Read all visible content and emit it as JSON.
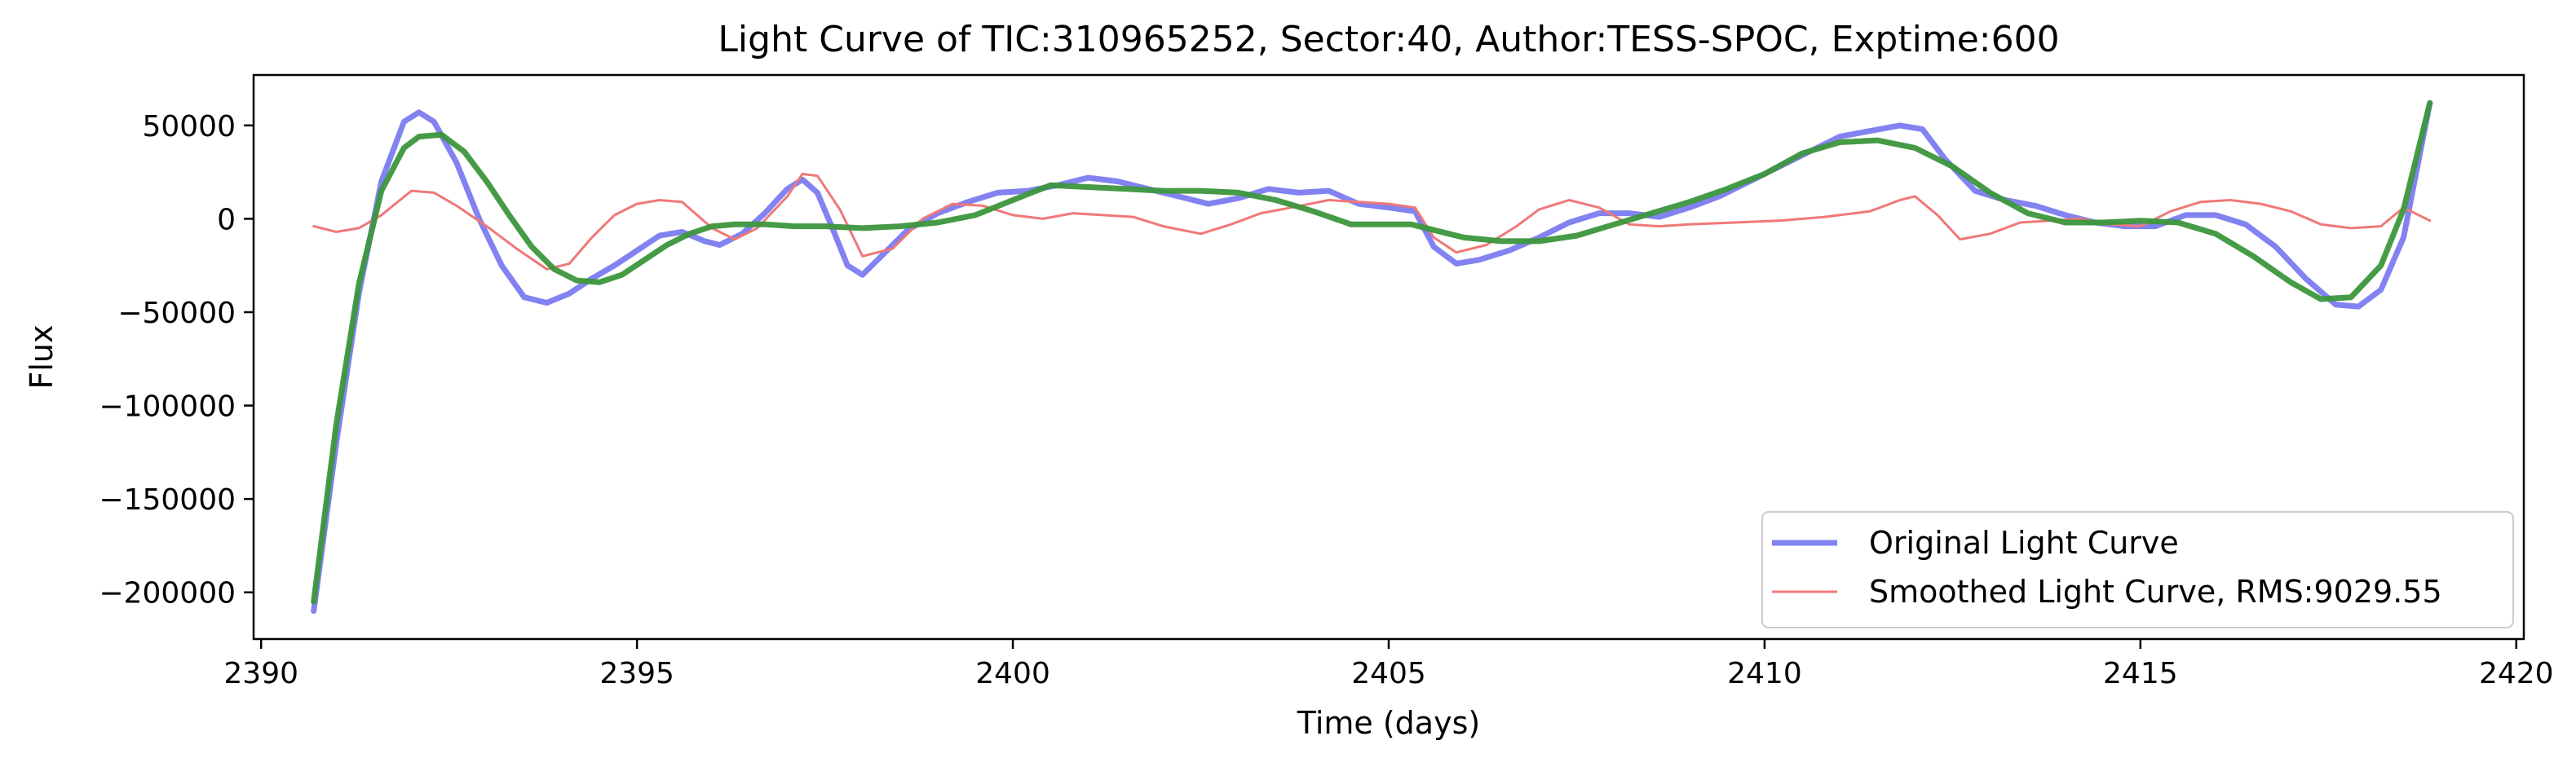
{
  "chart_data": {
    "type": "line",
    "title": "Light Curve of TIC:310965252, Sector:40, Author:TESS-SPOC, Exptime:600",
    "xlabel": "Time (days)",
    "ylabel": "Flux",
    "xlim": [
      2389.9,
      2420.1
    ],
    "ylim": [
      -225000,
      77000
    ],
    "xticks": [
      2390,
      2395,
      2400,
      2405,
      2410,
      2415,
      2420
    ],
    "yticks": [
      50000,
      0,
      -50000,
      -100000,
      -150000,
      -200000
    ],
    "ytick_labels": [
      "50000",
      "0",
      "−50000",
      "−100000",
      "−150000",
      "−200000"
    ],
    "grid": false,
    "legend": "lower-right",
    "series": [
      {
        "name": "Original Light Curve",
        "legend": true,
        "color": "#7b7bf0",
        "x": [
          2390.7,
          2391.0,
          2391.3,
          2391.6,
          2391.9,
          2392.1,
          2392.3,
          2392.6,
          2392.9,
          2393.2,
          2393.5,
          2393.8,
          2394.1,
          2394.4,
          2394.7,
          2395.0,
          2395.3,
          2395.6,
          2395.9,
          2396.1,
          2396.4,
          2396.7,
          2397.0,
          2397.2,
          2397.4,
          2397.6,
          2397.8,
          2398.0,
          2398.3,
          2398.6,
          2399.0,
          2399.4,
          2399.8,
          2400.2,
          2400.6,
          2401.0,
          2401.4,
          2401.8,
          2402.2,
          2402.6,
          2403.0,
          2403.4,
          2403.8,
          2404.2,
          2404.6,
          2405.0,
          2405.35,
          2405.6,
          2405.9,
          2406.2,
          2406.6,
          2407.0,
          2407.4,
          2407.8,
          2408.2,
          2408.6,
          2409.0,
          2409.4,
          2409.8,
          2410.2,
          2410.6,
          2411.0,
          2411.4,
          2411.8,
          2412.1,
          2412.4,
          2412.8,
          2413.2,
          2413.6,
          2414.0,
          2414.4,
          2414.8,
          2415.2,
          2415.6,
          2416.0,
          2416.4,
          2416.8,
          2417.2,
          2417.6,
          2417.9,
          2418.2,
          2418.5,
          2418.85
        ],
        "y": [
          -210000,
          -120000,
          -40000,
          20000,
          52000,
          57000,
          52000,
          30000,
          0,
          -25000,
          -42000,
          -45000,
          -40000,
          -32000,
          -25000,
          -17000,
          -9000,
          -7000,
          -12000,
          -14000,
          -8000,
          3000,
          16000,
          21000,
          14000,
          -5000,
          -25000,
          -30000,
          -18000,
          -6000,
          3000,
          9000,
          14000,
          15000,
          18000,
          22000,
          20000,
          16000,
          12000,
          8000,
          11000,
          16000,
          14000,
          15000,
          8000,
          6000,
          4000,
          -15000,
          -24000,
          -22000,
          -17000,
          -10000,
          -2000,
          3000,
          3000,
          1000,
          6000,
          12000,
          20000,
          28000,
          36000,
          44000,
          47000,
          50000,
          48000,
          32000,
          15000,
          10000,
          7000,
          2000,
          -2000,
          -4000,
          -4000,
          2000,
          2000,
          -3000,
          -15000,
          -32000,
          -46000,
          -47000,
          -38000,
          -10000,
          62000
        ]
      },
      {
        "name": "Smoothed Light Curve, RMS:9029.55",
        "legend": true,
        "color": "#f07878",
        "x": [
          2390.7,
          2391.0,
          2391.3,
          2391.6,
          2392.0,
          2392.3,
          2392.6,
          2393.0,
          2393.4,
          2393.8,
          2394.1,
          2394.4,
          2394.7,
          2395.0,
          2395.3,
          2395.6,
          2396.0,
          2396.3,
          2396.6,
          2397.0,
          2397.2,
          2397.4,
          2397.7,
          2398.0,
          2398.4,
          2398.8,
          2399.2,
          2399.6,
          2400.0,
          2400.4,
          2400.8,
          2401.2,
          2401.6,
          2402.0,
          2402.5,
          2402.9,
          2403.3,
          2403.7,
          2404.2,
          2404.6,
          2405.0,
          2405.35,
          2405.6,
          2405.9,
          2406.3,
          2406.7,
          2407.0,
          2407.4,
          2407.8,
          2408.2,
          2408.6,
          2409.0,
          2409.6,
          2410.2,
          2410.8,
          2411.4,
          2411.8,
          2412.0,
          2412.3,
          2412.6,
          2413.0,
          2413.4,
          2413.8,
          2414.2,
          2414.6,
          2415.0,
          2415.4,
          2415.8,
          2416.2,
          2416.6,
          2417.0,
          2417.4,
          2417.8,
          2418.2,
          2418.5,
          2418.85
        ],
        "y": [
          -4000,
          -7000,
          -5000,
          2000,
          15000,
          14000,
          7000,
          -4000,
          -16000,
          -27000,
          -24000,
          -10000,
          2000,
          8000,
          10000,
          9000,
          -5000,
          -11000,
          -5000,
          12000,
          24000,
          23000,
          5000,
          -20000,
          -16000,
          0,
          8000,
          7000,
          2000,
          0,
          3000,
          2000,
          1000,
          -4000,
          -8000,
          -3000,
          3000,
          6000,
          10000,
          9000,
          8000,
          6000,
          -10000,
          -18000,
          -14000,
          -4000,
          5000,
          10000,
          6000,
          -3000,
          -4000,
          -3000,
          -2000,
          -1000,
          1000,
          4000,
          10000,
          12000,
          2000,
          -11000,
          -8000,
          -2000,
          -1000,
          0,
          -3000,
          -4000,
          4000,
          9000,
          10000,
          8000,
          4000,
          -3000,
          -5000,
          -4000,
          6000,
          -1000
        ]
      },
      {
        "name": "",
        "legend": false,
        "color": "#3c963c",
        "x": [
          2390.7,
          2391.0,
          2391.3,
          2391.6,
          2391.9,
          2392.1,
          2392.4,
          2392.7,
          2393.0,
          2393.3,
          2393.6,
          2393.9,
          2394.2,
          2394.5,
          2394.8,
          2395.1,
          2395.4,
          2395.7,
          2396.0,
          2396.3,
          2396.7,
          2397.1,
          2397.5,
          2398.0,
          2398.5,
          2399.0,
          2399.5,
          2400.0,
          2400.5,
          2401.0,
          2401.5,
          2402.0,
          2402.5,
          2403.0,
          2403.5,
          2404.0,
          2404.5,
          2405.0,
          2405.3,
          2405.6,
          2406.0,
          2406.5,
          2407.0,
          2407.5,
          2408.0,
          2408.5,
          2409.0,
          2409.5,
          2410.0,
          2410.5,
          2411.0,
          2411.5,
          2412.0,
          2412.5,
          2413.0,
          2413.5,
          2414.0,
          2414.5,
          2415.0,
          2415.5,
          2416.0,
          2416.5,
          2417.0,
          2417.4,
          2417.8,
          2418.2,
          2418.5,
          2418.85
        ],
        "y": [
          -205000,
          -110000,
          -35000,
          15000,
          38000,
          44000,
          45000,
          36000,
          20000,
          2000,
          -15000,
          -27000,
          -33000,
          -34000,
          -30000,
          -22000,
          -14000,
          -8000,
          -4000,
          -3000,
          -3000,
          -4000,
          -4000,
          -5000,
          -4000,
          -2000,
          2000,
          10000,
          18000,
          17000,
          16000,
          15000,
          15000,
          14000,
          10000,
          4000,
          -3000,
          -3000,
          -3000,
          -6000,
          -10000,
          -12000,
          -12000,
          -9000,
          -3000,
          3000,
          9000,
          16000,
          24000,
          35000,
          41000,
          42000,
          38000,
          28000,
          14000,
          3000,
          -2000,
          -2000,
          -1000,
          -2000,
          -8000,
          -20000,
          -34000,
          -43000,
          -42000,
          -25000,
          5000,
          62000
        ]
      }
    ]
  }
}
